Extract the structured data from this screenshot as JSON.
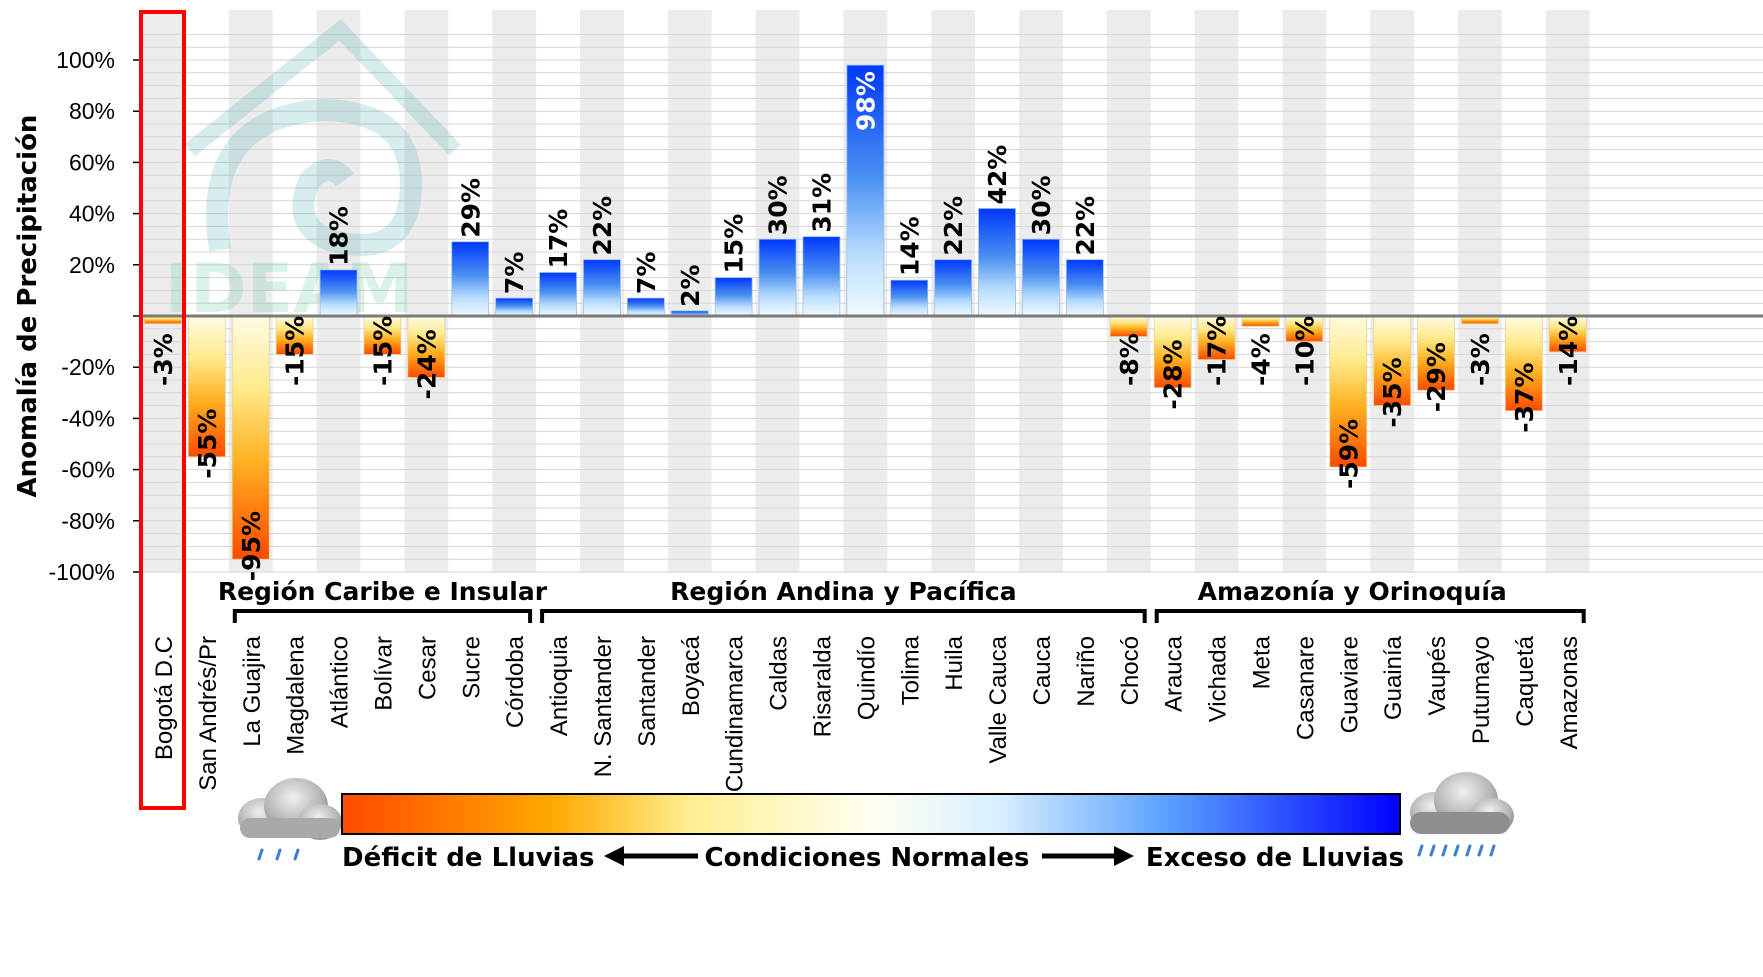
{
  "chart_data": {
    "type": "bar",
    "ylabel": "Anomalía de Precipitación",
    "ylim": [
      -100,
      110
    ],
    "yticks": [
      "100%",
      "80%",
      "60%",
      "40%",
      "20%",
      "",
      "-20%",
      "-40%",
      "-60%",
      "-80%",
      "-100%"
    ],
    "ytick_values": [
      100,
      80,
      60,
      40,
      20,
      0,
      -20,
      -40,
      -60,
      -80,
      -100
    ],
    "categories": [
      "Bogotá D.C",
      "San Andrés/Pr",
      "La Guajira",
      "Magdalena",
      "Atlántico",
      "Bolívar",
      "Cesar",
      "Sucre",
      "Córdoba",
      "Antioquia",
      "N. Santander",
      "Santander",
      "Boyacá",
      "Cundinamarca",
      "Caldas",
      "Risaralda",
      "Quindío",
      "Tolima",
      "Huila",
      "Valle Cauca",
      "Cauca",
      "Nariño",
      "Chocó",
      "Arauca",
      "Vichada",
      "Meta",
      "Casanare",
      "Guaviare",
      "Guainía",
      "Vaupés",
      "Putumayo",
      "Caquetá",
      "Amazonas"
    ],
    "values": [
      -3,
      -55,
      -95,
      -15,
      18,
      -15,
      -24,
      29,
      7,
      17,
      22,
      7,
      2,
      15,
      30,
      31,
      98,
      14,
      22,
      42,
      30,
      22,
      -8,
      -28,
      -17,
      -4,
      -10,
      -59,
      -35,
      -29,
      -3,
      -37,
      -14
    ],
    "labels": [
      "-3%",
      "-55%",
      "-95%",
      "-15%",
      "18%",
      "-15%",
      "-24%",
      "29%",
      "7%",
      "17%",
      "22%",
      "7%",
      "2%",
      "15%",
      "30%",
      "31%",
      "98%",
      "14%",
      "22%",
      "42%",
      "30%",
      "22%",
      "-8%",
      "-28%",
      "-17%",
      "-4%",
      "-10%",
      "-59%",
      "-35%",
      "-29%",
      "-3%",
      "-37%",
      "-14%"
    ],
    "highlighted_category": "Bogotá D.C",
    "regions": [
      {
        "name": "Región Caribe e Insular",
        "from": 2,
        "to": 8
      },
      {
        "name": "Región Andina y Pacífica",
        "from": 9,
        "to": 22
      },
      {
        "name": "Amazonía y Orinoquía",
        "from": 23,
        "to": 32
      }
    ],
    "grid": true,
    "colors": {
      "deficit_strong": "#ff4000",
      "deficit_mid": "#ffb000",
      "normal": "#fffce0",
      "excess_mid": "#9cd0ff",
      "excess_strong": "#0030ff",
      "highlight_box": "#ff0000"
    }
  },
  "legend": {
    "deficit": "Déficit de Lluvias",
    "normal": "Condiciones Normales",
    "excess": "Exceso de Lluvias"
  },
  "icons": {
    "left": "light-rain-cloud-icon",
    "right": "heavy-rain-cloud-icon",
    "watermark": "ideam-logo"
  },
  "watermark_text": "IDEAM"
}
